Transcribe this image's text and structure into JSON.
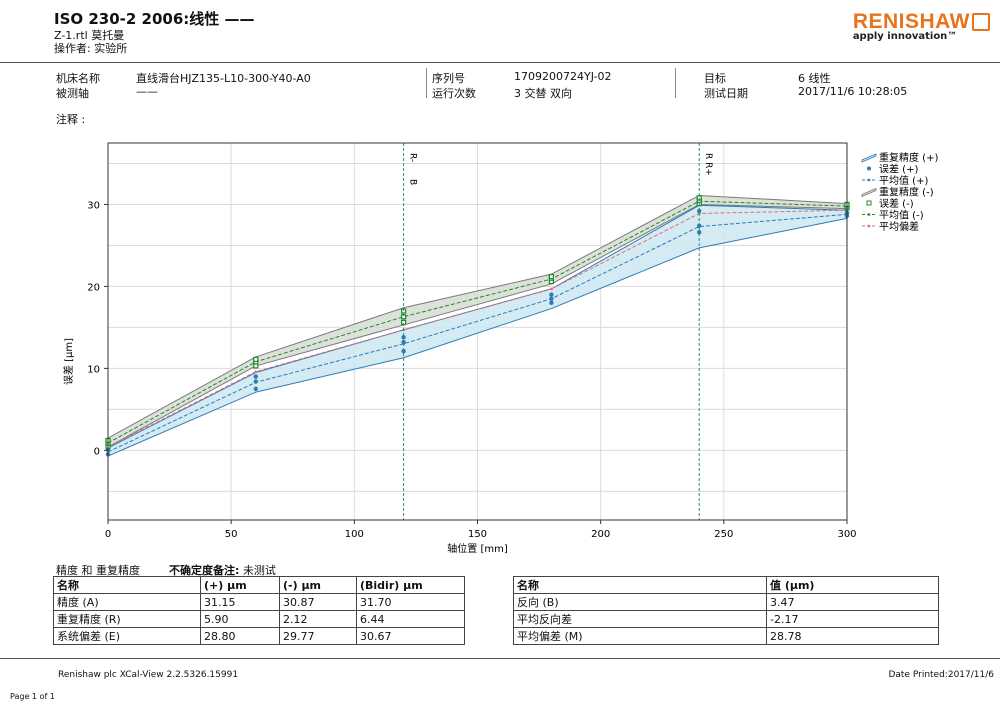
{
  "header": {
    "title": "ISO 230-2 2006:线性 ——",
    "file": "Z-1.rtl 莫托曼",
    "operator": "操作者: 实验所"
  },
  "logo": {
    "brand": "RENISHAW",
    "tagline": "apply innovation™"
  },
  "info": {
    "machine_label": "机床名称",
    "machine_value": "直线滑台HJZ135-L10-300-Y40-A0",
    "axis_label": "被测轴",
    "axis_value": "——",
    "serial_label": "序列号",
    "serial_value": "1709200724YJ-02",
    "runs_label": "运行次数",
    "runs_value": "3 交替 双向",
    "target_label": "目标",
    "target_value": "6 线性",
    "date_label": "测试日期",
    "date_value": "2017/11/6 10:28:05",
    "notes_label": "注释 :"
  },
  "chart_data": {
    "type": "line",
    "title": "",
    "xlabel": "轴位置 [mm]",
    "ylabel": "误差 [μm]",
    "xlim": [
      0,
      300
    ],
    "ylim": [
      -8.5,
      37.5
    ],
    "xticks": [
      0,
      50,
      100,
      150,
      200,
      250,
      300
    ],
    "yticks": [
      0,
      10,
      20,
      30
    ],
    "grid": true,
    "x": [
      0,
      60,
      120,
      180,
      240,
      300
    ],
    "series": [
      {
        "name": "平均值 (+)",
        "values": [
          -0.2,
          8.3,
          13.0,
          18.5,
          27.3,
          28.8
        ]
      },
      {
        "name": "平均值 (-)",
        "values": [
          0.9,
          10.8,
          16.3,
          20.9,
          30.4,
          29.8
        ]
      },
      {
        "name": "平均偏差",
        "values": [
          0.4,
          9.6,
          14.7,
          19.7,
          28.9,
          29.3
        ]
      }
    ],
    "band_plus": {
      "name": "重复精度 (+)",
      "lower": [
        -0.7,
        7.1,
        11.3,
        17.3,
        24.7,
        28.3
      ],
      "upper": [
        0.3,
        9.5,
        14.7,
        19.7,
        29.9,
        29.3
      ]
    },
    "band_minus": {
      "name": "重复精度 (-)",
      "lower": [
        0.4,
        10.3,
        15.3,
        20.3,
        30.0,
        29.5
      ],
      "upper": [
        1.5,
        11.4,
        17.4,
        21.5,
        31.1,
        30.1
      ]
    },
    "points_plus": [
      [
        0,
        -0.5
      ],
      [
        0,
        0.1
      ],
      [
        0,
        0.3
      ],
      [
        60,
        7.5
      ],
      [
        60,
        8.4
      ],
      [
        60,
        9.0
      ],
      [
        120,
        12.1
      ],
      [
        120,
        13.2
      ],
      [
        120,
        13.8
      ],
      [
        180,
        18.0
      ],
      [
        180,
        18.5
      ],
      [
        180,
        19.0
      ],
      [
        240,
        26.6
      ],
      [
        240,
        27.4
      ],
      [
        240,
        29.2
      ],
      [
        300,
        28.6
      ],
      [
        300,
        28.9
      ],
      [
        300,
        29.0
      ]
    ],
    "points_minus": [
      [
        0,
        0.5
      ],
      [
        0,
        0.9
      ],
      [
        0,
        1.2
      ],
      [
        60,
        10.3
      ],
      [
        60,
        10.8
      ],
      [
        60,
        11.1
      ],
      [
        120,
        15.6
      ],
      [
        120,
        16.3
      ],
      [
        120,
        17.0
      ],
      [
        180,
        20.6
      ],
      [
        180,
        21.0
      ],
      [
        180,
        21.2
      ],
      [
        240,
        30.1
      ],
      [
        240,
        30.5
      ],
      [
        240,
        30.8
      ],
      [
        300,
        29.6
      ],
      [
        300,
        29.8
      ],
      [
        300,
        30.0
      ]
    ],
    "vlines": [
      {
        "x": 120,
        "label1": "R-",
        "label2": "B"
      },
      {
        "x": 240,
        "label1": "R R+",
        "label2": ""
      }
    ],
    "legend": [
      "重复精度 (+)",
      "误差 (+)",
      "平均值 (+)",
      "重复精度 (-)",
      "误差 (-)",
      "平均值 (-)",
      "平均偏差"
    ],
    "colors": {
      "plus": "#2e7ab8",
      "minus": "#1f8a2a",
      "mean_dev": "#e07070",
      "band_plus": "#cde8f2",
      "band_minus": "#d6dcd4",
      "vline": "#2a8a7a"
    }
  },
  "results": {
    "caption1": "精度 和 重复精度",
    "caption2": "不确定度备注:",
    "caption3": "未测试",
    "left_headers": [
      "名称",
      "(+) μm",
      "(-) μm",
      "(Bidir) μm"
    ],
    "left_rows": [
      [
        "精度 (A)",
        "31.15",
        "30.87",
        "31.70"
      ],
      [
        "重复精度 (R)",
        "5.90",
        "2.12",
        "6.44"
      ],
      [
        "系统偏差 (E)",
        "28.80",
        "29.77",
        "30.67"
      ]
    ],
    "right_headers": [
      "名称",
      "值 (μm)"
    ],
    "right_rows": [
      [
        "反向 (B)",
        "3.47"
      ],
      [
        "平均反向差",
        "-2.17"
      ],
      [
        "平均偏差 (M)",
        "28.78"
      ]
    ]
  },
  "footer": {
    "software": "Renishaw plc XCal-View 2.2.5326.15991",
    "printed": "Date Printed:2017/11/6",
    "page": "Page 1 of 1"
  }
}
